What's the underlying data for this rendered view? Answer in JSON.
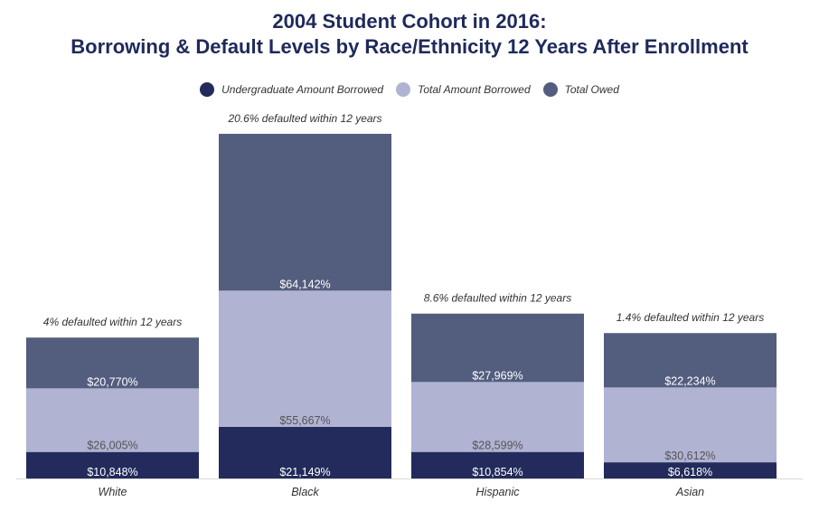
{
  "chart_data": {
    "type": "bar",
    "stacked": true,
    "title": [
      "2004 Student Cohort in 2016:",
      "Borrowing & Default Levels by Race/Ethnicity 12 Years After Enrollment"
    ],
    "categories": [
      "White",
      "Black",
      "Hispanic",
      "Asian"
    ],
    "series": [
      {
        "name": "Undergraduate Amount Borrowed",
        "color": "#222b5b",
        "values": [
          10848,
          21149,
          10854,
          6618
        ],
        "labels": [
          "$10,848%",
          "$21,149%",
          "$10,854%",
          "$6,618%"
        ],
        "label_color": "#ffffff"
      },
      {
        "name": "Total Amount Borrowed",
        "color": "#b0b3d2",
        "values": [
          26005,
          55667,
          28599,
          30612
        ],
        "labels": [
          "$26,005%",
          "$55,667%",
          "$28,599%",
          "$30,612%"
        ],
        "label_color": "#555555"
      },
      {
        "name": "Total Owed",
        "color": "#535d7e",
        "values": [
          20770,
          64142,
          27969,
          22234
        ],
        "labels": [
          "$20,770%",
          "$64,142%",
          "$27,969%",
          "$22,234%"
        ],
        "label_color": "#ffffff"
      }
    ],
    "annotations": [
      "4% defaulted within 12 years",
      "20.6% defaulted within 12 years",
      "8.6% defaulted within 12 years",
      "1.4% defaulted within 12 years"
    ],
    "legend_position": "top",
    "grid": false
  }
}
